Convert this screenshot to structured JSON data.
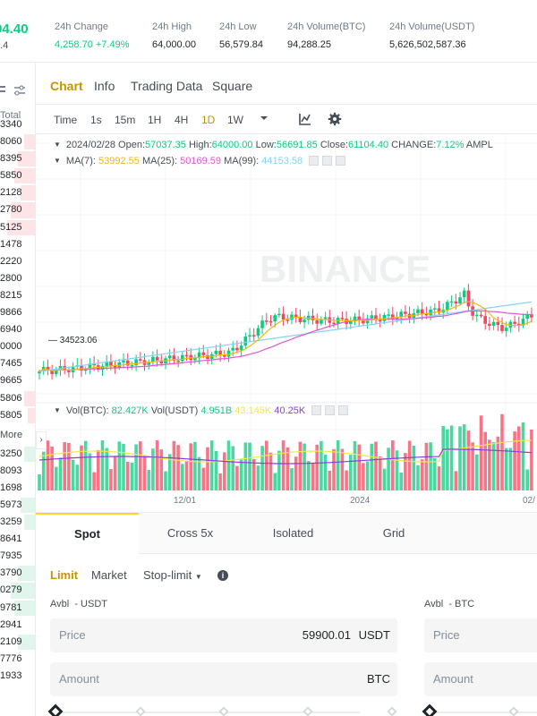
{
  "ticker": {
    "last_price": "94.40",
    "last_sub": "4.4",
    "stats": [
      {
        "label": "24h Change",
        "value": "4,258.70 +7.49%",
        "up": true
      },
      {
        "label": "24h High",
        "value": "64,000.00",
        "up": false
      },
      {
        "label": "24h Low",
        "value": "56,579.84",
        "up": false
      },
      {
        "label": "24h Volume(BTC)",
        "value": "94,288.25",
        "up": false
      },
      {
        "label": "24h Volume(USDT)",
        "value": "5,626,502,587.36",
        "up": false
      }
    ]
  },
  "orderbook": {
    "total_label": "Total",
    "more_label": "More",
    "asks": [
      "3340",
      "8060",
      "8395",
      "5850",
      "2128",
      "2780",
      "5125",
      "1478",
      "2220",
      "2800",
      "8215",
      "9866",
      "6940",
      "0000",
      "7465",
      "9665",
      "5806",
      "5805"
    ],
    "ask_fill": [
      0.0,
      0.3,
      0.5,
      0.6,
      0.4,
      0.7,
      0.8,
      0.0,
      0.0,
      0.0,
      0.0,
      0.0,
      0.0,
      0.0,
      0.0,
      0.0,
      0.3,
      0.2
    ],
    "bids": [
      "3250",
      "8093",
      "1698",
      "5973",
      "3259",
      "8641",
      "7935",
      "3790",
      "0279",
      "9781",
      "2941",
      "2109",
      "7776",
      "1933"
    ],
    "bid_fill": [
      0.3,
      0.0,
      0.0,
      0.4,
      0.3,
      0.0,
      0.0,
      0.5,
      0.7,
      0.6,
      0.0,
      0.5,
      0.0,
      0.0
    ],
    "colors": {
      "ask": "#f6465d",
      "bid": "#0ecb81"
    }
  },
  "tabs": [
    "Chart",
    "Info",
    "Trading Data",
    "Square"
  ],
  "active_tab": "Chart",
  "toolbar": {
    "time_label": "Time",
    "intervals": [
      "1s",
      "15m",
      "1H",
      "4H",
      "1D",
      "1W"
    ],
    "active_interval": "1D",
    "icons": [
      "chevron-down-icon",
      "chart-indicator-icon",
      "gear-icon"
    ]
  },
  "chart_legend": {
    "date": "2024/02/28",
    "open_label": "Open:",
    "open": "57037.35",
    "high_label": "High:",
    "high": "64000.00",
    "low_label": "Low:",
    "low": "56691.85",
    "close_label": "Close:",
    "close": "61104.40",
    "change_label": "CHANGE:",
    "change": "7.12%",
    "ampl_label": "AMPL",
    "ma7_label": "MA(7):",
    "ma7": "53992.55",
    "ma25_label": "MA(25):",
    "ma25": "50169.59",
    "ma99_label": "MA(99):",
    "ma99": "44153.58",
    "vol_btc_label": "Vol(BTC):",
    "vol_btc": "82.427K",
    "vol_usdt_label": "Vol(USDT)",
    "vol_usdt": "4.951B",
    "vol_ma1": "43.145K",
    "vol_ma2": "40.25K",
    "low_marker": "34523.06",
    "watermark": "BINANCE",
    "x_labels": [
      "12/01",
      "2024",
      "02/"
    ]
  },
  "chart_data": {
    "type": "candlestick",
    "x_range": [
      "2023/10",
      "2024/02/28"
    ],
    "price_range": [
      34000,
      64000
    ],
    "series": [
      {
        "name": "MA(7)",
        "color": "#f0b90b"
      },
      {
        "name": "MA(25)",
        "color": "#e056d4"
      },
      {
        "name": "MA(99)",
        "color": "#7fd4f5"
      }
    ],
    "volume_series": [
      {
        "name": "Vol MA 1",
        "color": "#f0e84a"
      },
      {
        "name": "Vol MA 2",
        "color": "#8a3ed6"
      }
    ],
    "colors": {
      "up": "#0ecb81",
      "down": "#f6465d"
    }
  },
  "trade": {
    "tabs": [
      "Spot",
      "Cross 5x",
      "Isolated",
      "Grid"
    ],
    "active_tab": "Spot",
    "order_types": [
      "Limit",
      "Market",
      "Stop-limit"
    ],
    "active_order_type": "Limit",
    "buy": {
      "avbl_label": "Avbl",
      "avbl_value": "- USDT",
      "price_label": "Price",
      "price_value": "59900.01",
      "price_unit": "USDT",
      "amount_label": "Amount",
      "amount_unit": "BTC"
    },
    "sell": {
      "avbl_label": "Avbl",
      "avbl_value": "- BTC",
      "price_label": "Price",
      "amount_label": "Amount"
    }
  }
}
